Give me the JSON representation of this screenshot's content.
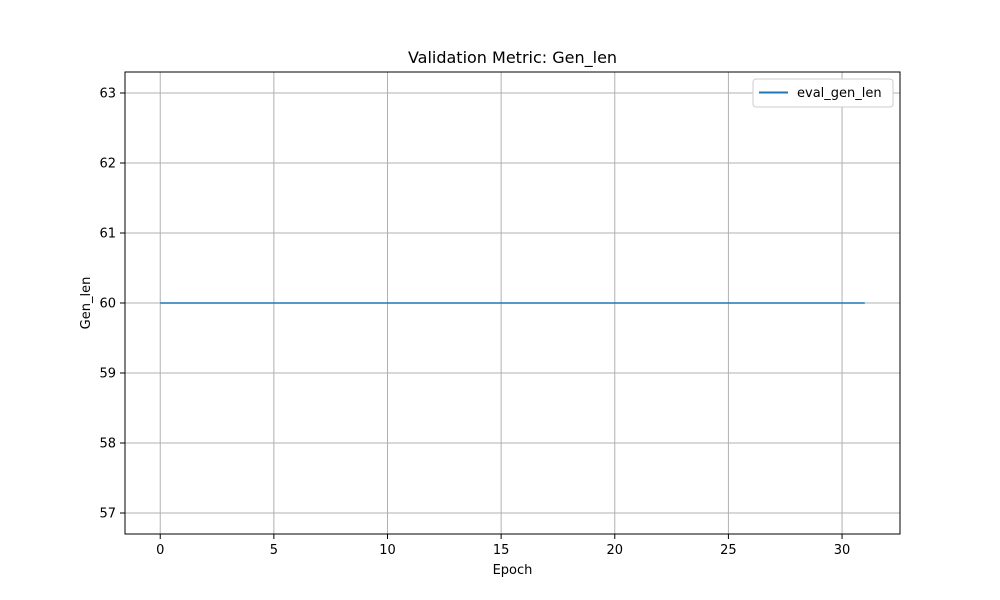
{
  "chart_data": {
    "type": "line",
    "title": "Validation Metric: Gen_len",
    "xlabel": "Epoch",
    "ylabel": "Gen_len",
    "xlim": [
      -1.55,
      32.55
    ],
    "ylim": [
      56.7,
      63.3
    ],
    "xticks": [
      0,
      5,
      10,
      15,
      20,
      25,
      30
    ],
    "yticks": [
      57,
      58,
      59,
      60,
      61,
      62,
      63
    ],
    "grid": true,
    "legend_position": "upper right",
    "colors": {
      "series": "#1f77b4",
      "grid": "#b0b0b0"
    },
    "series": [
      {
        "name": "eval_gen_len",
        "x": [
          0,
          31
        ],
        "y": [
          60,
          60
        ]
      }
    ]
  }
}
